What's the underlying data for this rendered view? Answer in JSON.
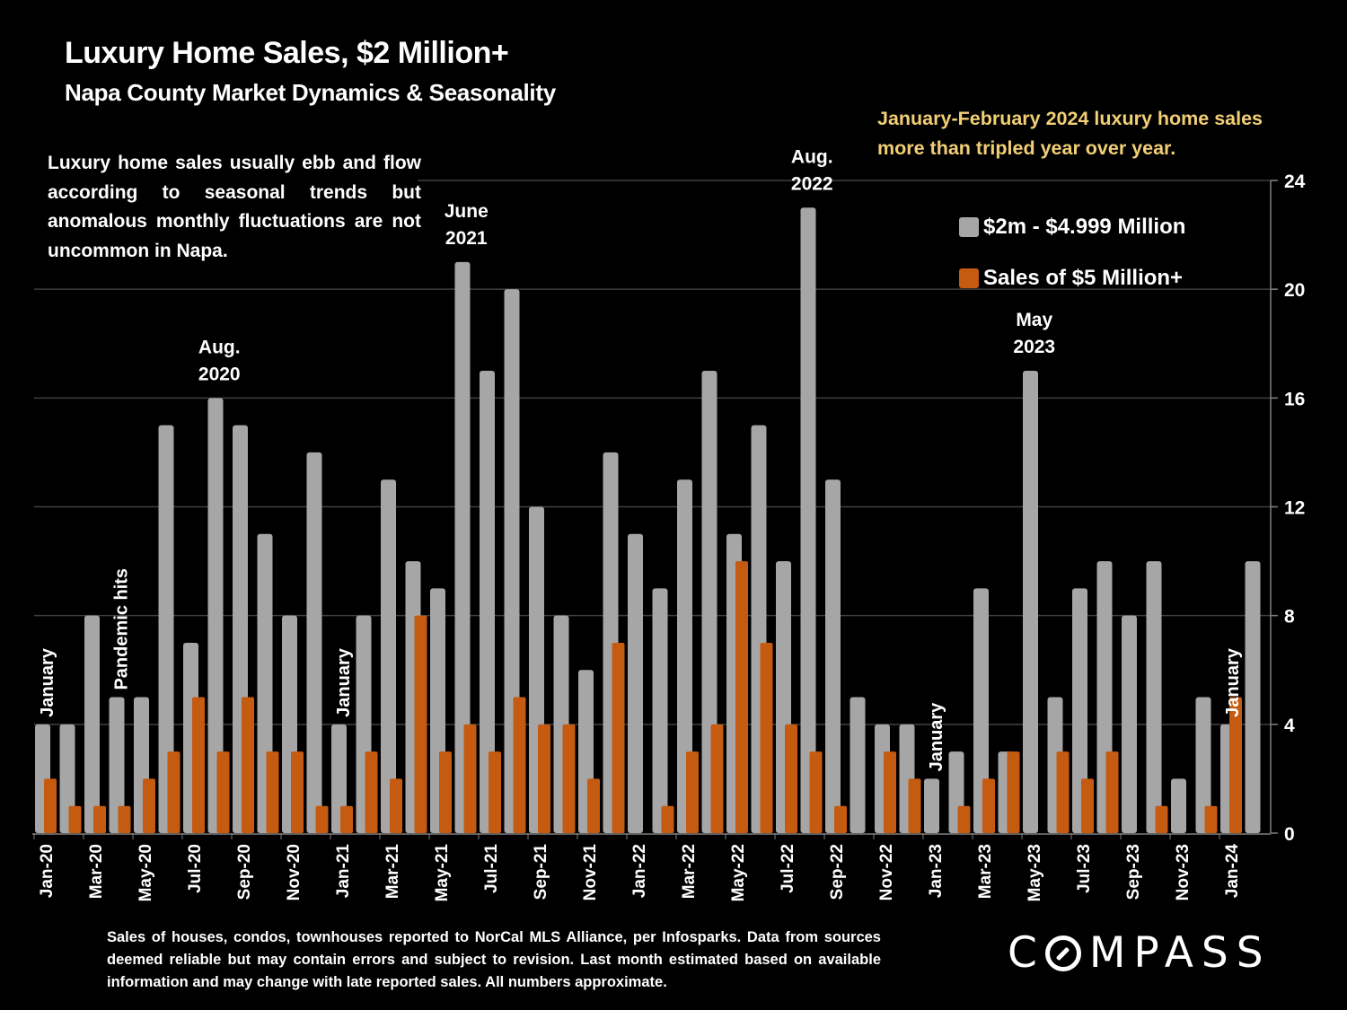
{
  "header": {
    "title": "Luxury Home Sales, $2 Million+",
    "subtitle": "Napa County Market Dynamics & Seasonality"
  },
  "note": "Luxury home sales usually ebb and flow according to seasonal trends but anomalous monthly fluctuations are not uncommon in Napa.",
  "callout": "January-February 2024 luxury home sales more than tripled year over year.",
  "footnote": "Sales of houses, condos, townhouses reported to NorCal MLS Alliance, per Infosparks. Data from sources deemed reliable but may contain errors and subject to revision. Last month estimated based on available information and may change with late reported sales. All numbers approximate.",
  "logo": {
    "prefix": "C",
    "suffix": "MPASS"
  },
  "colors": {
    "gray": "#A6A6A6",
    "orange": "#C55A11",
    "callout": "#F2CF74",
    "grid": "#404040"
  },
  "chart_data": {
    "type": "bar",
    "title": "Luxury Home Sales, $2 Million+",
    "xlabel": "",
    "ylabel": "",
    "ylim": [
      0,
      24
    ],
    "yticks": [
      0,
      4,
      8,
      12,
      16,
      20,
      24
    ],
    "y_axis_side": "right",
    "grid": true,
    "legend_position": "top-right",
    "categories": [
      "Jan-20",
      "Feb-20",
      "Mar-20",
      "Apr-20",
      "May-20",
      "Jun-20",
      "Jul-20",
      "Aug-20",
      "Sep-20",
      "Oct-20",
      "Nov-20",
      "Dec-20",
      "Jan-21",
      "Feb-21",
      "Mar-21",
      "Apr-21",
      "May-21",
      "Jun-21",
      "Jul-21",
      "Aug-21",
      "Sep-21",
      "Oct-21",
      "Nov-21",
      "Dec-21",
      "Jan-22",
      "Feb-22",
      "Mar-22",
      "Apr-22",
      "May-22",
      "Jun-22",
      "Jul-22",
      "Aug-22",
      "Sep-22",
      "Oct-22",
      "Nov-22",
      "Dec-22",
      "Jan-23",
      "Feb-23",
      "Mar-23",
      "Apr-23",
      "May-23",
      "Jun-23",
      "Jul-23",
      "Aug-23",
      "Sep-23",
      "Oct-23",
      "Nov-23",
      "Dec-23",
      "Jan-24",
      "Feb-24"
    ],
    "tick_labels": [
      "Jan-20",
      "Mar-20",
      "May-20",
      "Jul-20",
      "Sep-20",
      "Nov-20",
      "Jan-21",
      "Mar-21",
      "May-21",
      "Jul-21",
      "Sep-21",
      "Nov-21",
      "Jan-22",
      "Mar-22",
      "May-22",
      "Jul-22",
      "Sep-22",
      "Nov-22",
      "Jan-23",
      "Mar-23",
      "May-23",
      "Jul-23",
      "Sep-23",
      "Nov-23",
      "Jan-24"
    ],
    "series": [
      {
        "name": "$2m - $4.999 Million",
        "color": "#A6A6A6",
        "values": [
          4,
          4,
          8,
          5,
          5,
          15,
          7,
          16,
          15,
          11,
          8,
          14,
          4,
          8,
          13,
          10,
          9,
          21,
          17,
          20,
          12,
          8,
          6,
          14,
          11,
          9,
          13,
          17,
          11,
          15,
          10,
          23,
          13,
          5,
          4,
          4,
          2,
          3,
          9,
          3,
          17,
          5,
          9,
          10,
          8,
          10,
          2,
          5,
          4,
          10
        ]
      },
      {
        "name": "Sales of $5 Million+",
        "color": "#C55A11",
        "values": [
          2,
          1,
          1,
          1,
          2,
          3,
          5,
          3,
          5,
          3,
          3,
          1,
          1,
          3,
          2,
          8,
          3,
          4,
          3,
          5,
          4,
          4,
          2,
          7,
          0,
          1,
          3,
          4,
          10,
          7,
          4,
          3,
          1,
          0,
          3,
          2,
          0,
          1,
          2,
          3,
          0,
          3,
          2,
          3,
          0,
          1,
          0,
          1,
          5,
          0
        ]
      }
    ],
    "annotations": [
      {
        "text": "January",
        "index": 0,
        "rotated": true
      },
      {
        "text": "Pandemic hits",
        "index": 3,
        "rotated": true
      },
      {
        "text": "Aug.|2020",
        "index": 7,
        "rotated": false
      },
      {
        "text": "January",
        "index": 12,
        "rotated": true
      },
      {
        "text": "June|2021",
        "index": 17,
        "rotated": false
      },
      {
        "text": "Aug.|2022",
        "index": 31,
        "rotated": false
      },
      {
        "text": "January",
        "index": 36,
        "rotated": true
      },
      {
        "text": "May|2023",
        "index": 40,
        "rotated": false
      },
      {
        "text": "January",
        "index": 48,
        "rotated": true
      }
    ]
  }
}
